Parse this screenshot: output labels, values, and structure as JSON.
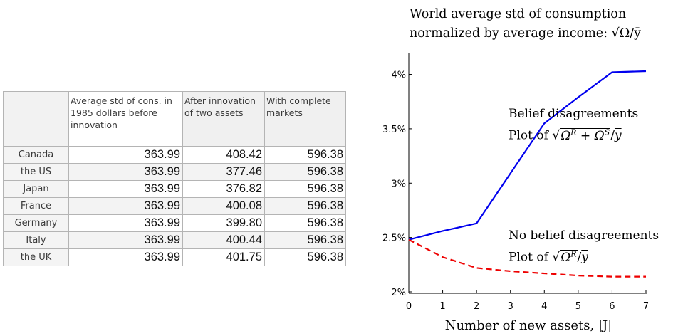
{
  "table": {
    "headers": [
      "",
      "Average std of cons. in 1985 dollars before innovation",
      "After innovation of two assets",
      "With complete markets"
    ],
    "rows": [
      {
        "country": "Canada",
        "values": [
          "363.99",
          "408.42",
          "596.38"
        ]
      },
      {
        "country": "the US",
        "values": [
          "363.99",
          "377.46",
          "596.38"
        ]
      },
      {
        "country": "Japan",
        "values": [
          "363.99",
          "376.82",
          "596.38"
        ]
      },
      {
        "country": "France",
        "values": [
          "363.99",
          "400.08",
          "596.38"
        ]
      },
      {
        "country": "Germany",
        "values": [
          "363.99",
          "399.80",
          "596.38"
        ]
      },
      {
        "country": "Italy",
        "values": [
          "363.99",
          "400.44",
          "596.38"
        ]
      },
      {
        "country": "the UK",
        "values": [
          "363.99",
          "401.75",
          "596.38"
        ]
      }
    ]
  },
  "chart_data": {
    "type": "line",
    "title": "World average std of consumption",
    "subtitle": "normalized by average income: √Ω/ȳ",
    "xlabel": "Number of new assets, |J|",
    "ylabel": "",
    "x": [
      0,
      1,
      2,
      3,
      4,
      5,
      6,
      7
    ],
    "xlim": [
      0,
      7
    ],
    "ylim": [
      2,
      4.2
    ],
    "x_ticks": [
      0,
      1,
      2,
      3,
      4,
      5,
      6,
      7
    ],
    "y_ticks": [
      2,
      2.5,
      3,
      3.5,
      4
    ],
    "y_tick_labels": [
      "2%",
      "2.5%",
      "3%",
      "3.5%",
      "4%"
    ],
    "grid": false,
    "series": [
      {
        "name": "Belief disagreements",
        "values": [
          2.48,
          2.56,
          2.63,
          3.09,
          3.55,
          3.79,
          4.02,
          4.03
        ],
        "color": "#0000ee",
        "style": "solid"
      },
      {
        "name": "No belief disagreements",
        "values": [
          2.48,
          2.32,
          2.22,
          2.19,
          2.17,
          2.15,
          2.14,
          2.14
        ],
        "color": "#ee0000",
        "style": "dashed"
      }
    ],
    "annotations": [
      {
        "line1": "Belief disagreements",
        "line2_prefix": "Plot of ",
        "formula": "√(Ω^R + Ω^S)/ȳ"
      },
      {
        "line1": "No belief disagreements",
        "line2_prefix": "Plot of ",
        "formula": "√Ω^R/ȳ"
      }
    ]
  }
}
